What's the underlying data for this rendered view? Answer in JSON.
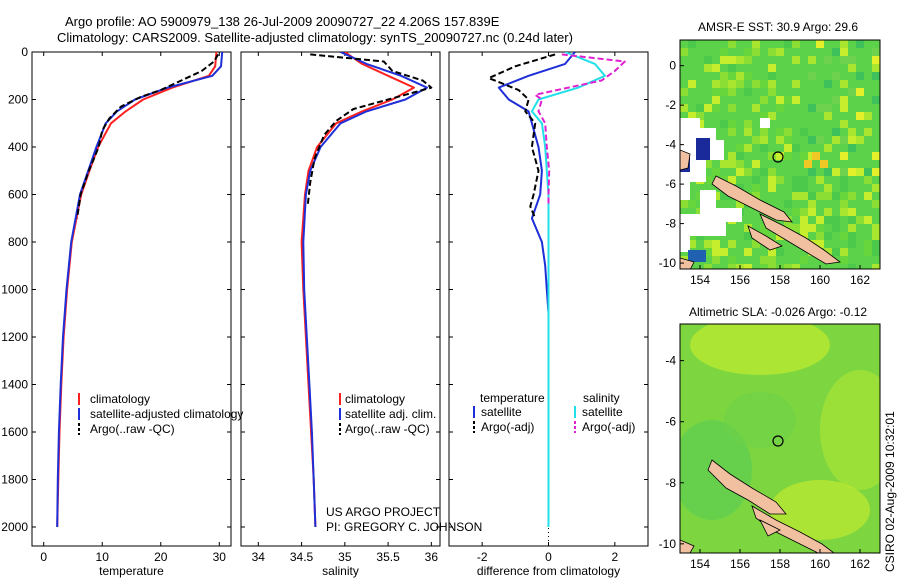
{
  "header": {
    "line1": "Argo profile: AO 5900979_138 26-Jul-2009 20090727_22 4.206S 157.839E",
    "line2": "Climatology: CARS2009. Satellite-adjusted climatology: synTS_20090727.nc (0.24d later)"
  },
  "colors": {
    "climatology": "#ff2020",
    "satellite": "#1f2fd8",
    "argo": "#000000",
    "satellite_salinity": "#22e0e8",
    "argo_adj_salinity": "#e020d0",
    "land": "#f0c0a0"
  },
  "side_label": "CSIRO 02-Aug-2009 10:32:01",
  "project": {
    "line1": "US ARGO PROJECT",
    "line2": "PI: GREGORY C. JOHNSON"
  },
  "chart_data": [
    {
      "id": "temperature",
      "type": "line",
      "xlabel": "temperature",
      "xlim": [
        -2,
        32
      ],
      "ylim": [
        2080,
        0
      ],
      "xticks": [
        0,
        10,
        20,
        30
      ],
      "yticks": [
        0,
        200,
        400,
        600,
        800,
        1000,
        1200,
        1400,
        1600,
        1800,
        2000
      ],
      "legend": [
        "climatology",
        "satellite-adjusted climatology",
        "Argo(..raw -QC)"
      ],
      "series": [
        {
          "name": "climatology",
          "style": "solid",
          "depth": [
            0,
            60,
            100,
            150,
            200,
            250,
            300,
            400,
            500,
            600,
            800,
            1000,
            1200,
            1400,
            1600,
            1800,
            2000
          ],
          "values": [
            29.5,
            29.3,
            28.2,
            22,
            17,
            14,
            11.5,
            9.3,
            7.8,
            6.4,
            4.8,
            4,
            3.4,
            3,
            2.7,
            2.5,
            2.3
          ]
        },
        {
          "name": "satellite-adjusted climatology",
          "style": "solid",
          "depth": [
            0,
            60,
            100,
            150,
            200,
            250,
            300,
            400,
            500,
            600,
            800,
            1000,
            1200,
            1400,
            1600,
            1800,
            2000
          ],
          "values": [
            30.5,
            30.3,
            28.8,
            21.2,
            15.6,
            12.5,
            10.6,
            9,
            7.6,
            6.2,
            4.7,
            3.9,
            3.3,
            2.9,
            2.6,
            2.4,
            2.3
          ]
        },
        {
          "name": "Argo(..raw -QC)",
          "style": "dashed",
          "depth": [
            10,
            40,
            80,
            120,
            160,
            190,
            230,
            280,
            330,
            400,
            500,
            600,
            700
          ],
          "values": [
            29.8,
            29.1,
            27,
            23.5,
            20,
            16.5,
            13.2,
            11.2,
            10,
            9.4,
            7.7,
            6.3,
            5.7
          ]
        }
      ]
    },
    {
      "id": "salinity",
      "type": "line",
      "xlabel": "salinity",
      "xlim": [
        33.8,
        36.1
      ],
      "ylim": [
        2080,
        0
      ],
      "xticks": [
        34,
        34.5,
        35,
        35.5,
        36
      ],
      "legend": [
        "climatology",
        "satellite adj. clim.",
        "Argo(..raw -QC)"
      ],
      "series": [
        {
          "name": "climatology",
          "style": "solid",
          "depth": [
            0,
            50,
            100,
            150,
            200,
            250,
            300,
            400,
            500,
            600,
            800,
            1000,
            1200,
            1400,
            1600,
            1800,
            2000
          ],
          "values": [
            35.0,
            35.2,
            35.5,
            35.8,
            35.55,
            35.2,
            34.9,
            34.68,
            34.58,
            34.54,
            34.5,
            34.52,
            34.55,
            34.58,
            34.61,
            34.64,
            34.66
          ]
        },
        {
          "name": "satellite adj. clim.",
          "style": "solid",
          "depth": [
            0,
            50,
            100,
            150,
            200,
            250,
            300,
            400,
            500,
            600,
            800,
            1000,
            1200,
            1400,
            1600,
            1800,
            2000
          ],
          "values": [
            34.95,
            35.25,
            35.65,
            35.95,
            35.7,
            35.25,
            34.95,
            34.72,
            34.6,
            34.55,
            34.52,
            34.53,
            34.56,
            34.59,
            34.62,
            34.64,
            34.66
          ]
        },
        {
          "name": "Argo(..raw -QC)",
          "style": "dashed",
          "depth": [
            10,
            40,
            80,
            120,
            150,
            170,
            200,
            240,
            290,
            350,
            450,
            550,
            650
          ],
          "values": [
            34.6,
            35.45,
            35.55,
            35.9,
            36.0,
            35.8,
            35.5,
            35.1,
            34.9,
            34.76,
            34.65,
            34.6,
            34.57
          ]
        }
      ]
    },
    {
      "id": "difference",
      "type": "line",
      "xlabel": "difference from climatology",
      "xlim": [
        -3,
        3
      ],
      "ylim": [
        2080,
        0
      ],
      "xticks": [
        -2,
        0,
        2
      ],
      "legend_headers": [
        "temperature",
        "salinity"
      ],
      "legend": [
        "satellite",
        "Argo(-adj)",
        "satellite",
        "Argo(-adj)"
      ],
      "series": [
        {
          "name": "temperature satellite",
          "style": "solid",
          "depth": [
            0,
            50,
            100,
            150,
            200,
            250,
            300,
            400,
            500,
            600,
            700,
            800,
            900,
            1000,
            1100,
            1200,
            1400,
            1600,
            1800,
            2000
          ],
          "values": [
            0.8,
            0.5,
            -0.6,
            -1.5,
            -1.2,
            -0.6,
            -0.5,
            -0.3,
            -0.2,
            -0.25,
            -0.5,
            -0.2,
            -0.1,
            -0.05,
            0,
            0,
            0,
            0,
            0,
            0
          ]
        },
        {
          "name": "temperature Argo(-adj)",
          "style": "dashed",
          "depth": [
            10,
            60,
            110,
            160,
            200,
            250,
            300,
            400,
            500,
            600,
            650,
            700
          ],
          "values": [
            0.2,
            -1.0,
            -1.8,
            -0.9,
            -0.6,
            -0.7,
            -0.4,
            -0.5,
            -0.3,
            -0.45,
            -0.55,
            -0.4
          ]
        },
        {
          "name": "salinity satellite",
          "style": "solid",
          "depth": [
            0,
            50,
            100,
            150,
            200,
            250,
            300,
            400,
            500,
            600,
            800,
            1000,
            1200,
            1500,
            1800,
            2000
          ],
          "values": [
            0.5,
            1.4,
            1.7,
            0.9,
            -0.3,
            -0.5,
            -0.2,
            -0.1,
            -0.05,
            0,
            0,
            0,
            0,
            0,
            0,
            0
          ]
        },
        {
          "name": "salinity Argo(-adj)",
          "style": "dashed",
          "depth": [
            10,
            40,
            80,
            120,
            150,
            180,
            200,
            250,
            300,
            400,
            500,
            600,
            650
          ],
          "values": [
            0.4,
            2.3,
            2.0,
            1.6,
            0.6,
            -0.4,
            -0.2,
            -0.3,
            -0.1,
            -0.05,
            0.02,
            0,
            0
          ]
        }
      ]
    },
    {
      "id": "sst_map",
      "type": "heatmap",
      "title": "AMSR-E SST: 30.9 Argo: 29.6",
      "xticks": [
        154,
        156,
        158,
        160,
        162
      ],
      "yticks": [
        0,
        -2,
        -4,
        -6,
        -8,
        -10
      ],
      "xlim": [
        153,
        163
      ],
      "ylim": [
        -10.3,
        1.3
      ],
      "float_position": [
        157.839,
        -4.206
      ]
    },
    {
      "id": "sla_map",
      "type": "heatmap",
      "title": "Altimetric SLA: -0.026 Argo: -0.12",
      "xticks": [
        154,
        156,
        158,
        160,
        162
      ],
      "yticks": [
        -4,
        -6,
        -8,
        -10
      ],
      "xlim": [
        153,
        163
      ],
      "ylim": [
        -10.3,
        -2.8
      ],
      "float_position": [
        157.839,
        -4.206
      ]
    }
  ]
}
